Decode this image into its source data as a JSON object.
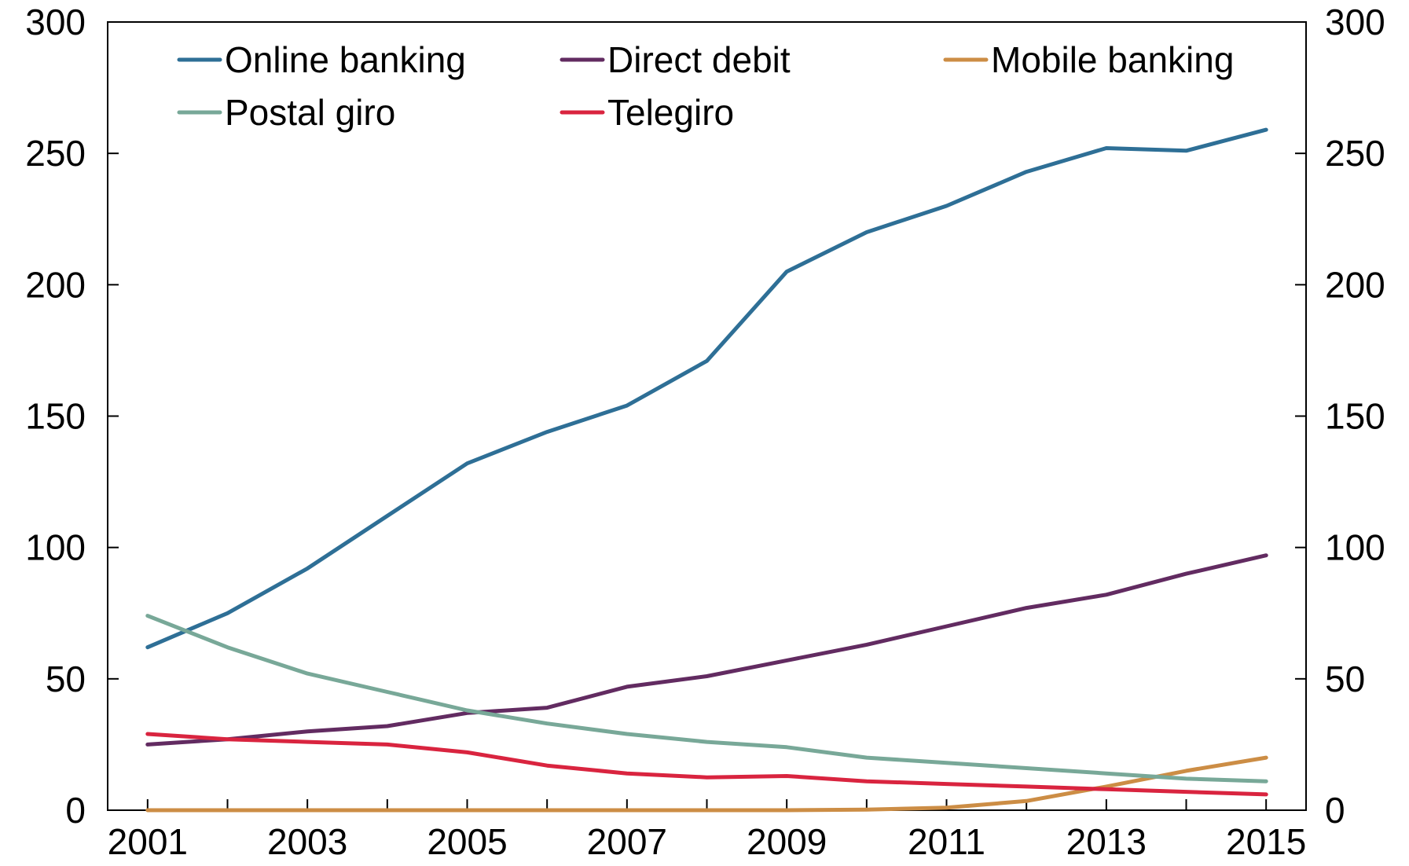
{
  "chart_data": {
    "type": "line",
    "title": "",
    "xlabel": "",
    "ylabel": "",
    "x": [
      2001,
      2002,
      2003,
      2004,
      2005,
      2006,
      2007,
      2008,
      2009,
      2010,
      2011,
      2012,
      2013,
      2014,
      2015
    ],
    "xlim": [
      2000.5,
      2015.5
    ],
    "x_tick_labels": [
      "2001",
      "2003",
      "2005",
      "2007",
      "2009",
      "2011",
      "2013",
      "2015"
    ],
    "ylim": [
      0,
      300
    ],
    "y_ticks": [
      0,
      50,
      100,
      150,
      200,
      250,
      300
    ],
    "y_tick_labels": [
      "0",
      "50",
      "100",
      "150",
      "200",
      "250",
      "300"
    ],
    "y_axis_right_mirrored": true,
    "grid": false,
    "legend_position": "top, inside plot (3 columns)",
    "series": [
      {
        "name": "Online banking",
        "color": "#2e6f96",
        "values": [
          62,
          75,
          92,
          112,
          132,
          144,
          154,
          171,
          205,
          220,
          230,
          243,
          252,
          251,
          259
        ]
      },
      {
        "name": "Direct debit",
        "color": "#622b61",
        "values": [
          25,
          27,
          30,
          32,
          37,
          39,
          47,
          51,
          57,
          63,
          70,
          77,
          82,
          90,
          97
        ]
      },
      {
        "name": "Mobile banking",
        "color": "#cc8d45",
        "values": [
          0,
          0,
          0,
          0,
          0,
          0,
          0,
          0,
          0,
          0.2,
          1,
          3.5,
          9,
          15,
          20
        ]
      },
      {
        "name": "Postal giro",
        "color": "#78a898",
        "values": [
          74,
          62,
          52,
          45,
          38,
          33,
          29,
          26,
          24,
          20,
          18,
          16,
          14,
          12,
          11
        ]
      },
      {
        "name": "Telegiro",
        "color": "#d9243f",
        "values": [
          29,
          27,
          26,
          25,
          22,
          17,
          14,
          12.5,
          13,
          11,
          10,
          9,
          8,
          7,
          6
        ]
      }
    ]
  }
}
